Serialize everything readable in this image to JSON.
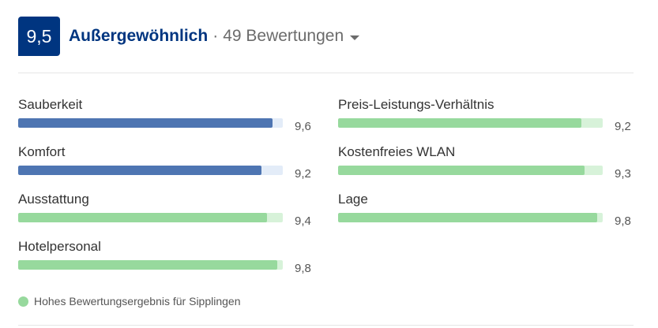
{
  "header": {
    "score": "9,5",
    "rating_word": "Außergewöhnlich",
    "separator": "·",
    "review_count": "49 Bewertungen"
  },
  "colors": {
    "blue_fill": "#4e75b2",
    "blue_track": "#e3ecf8",
    "green_fill": "#97d99d",
    "green_track": "#d7f2d9",
    "brand_blue": "#003580"
  },
  "categories": [
    {
      "label": "Sauberkeit",
      "value": "9,6",
      "score": 9.6,
      "color": "blue"
    },
    {
      "label": "Komfort",
      "value": "9,2",
      "score": 9.2,
      "color": "blue"
    },
    {
      "label": "Ausstattung",
      "value": "9,4",
      "score": 9.4,
      "color": "green"
    },
    {
      "label": "Hotelpersonal",
      "value": "9,8",
      "score": 9.8,
      "color": "green"
    },
    {
      "label": "Preis-Leistungs-Verhältnis",
      "value": "9,2",
      "score": 9.2,
      "color": "green"
    },
    {
      "label": "Kostenfreies WLAN",
      "value": "9,3",
      "score": 9.3,
      "color": "green"
    },
    {
      "label": "Lage",
      "value": "9,8",
      "score": 9.8,
      "color": "green"
    }
  ],
  "legend": {
    "text": "Hohes Bewertungsergebnis für Sipplingen"
  }
}
